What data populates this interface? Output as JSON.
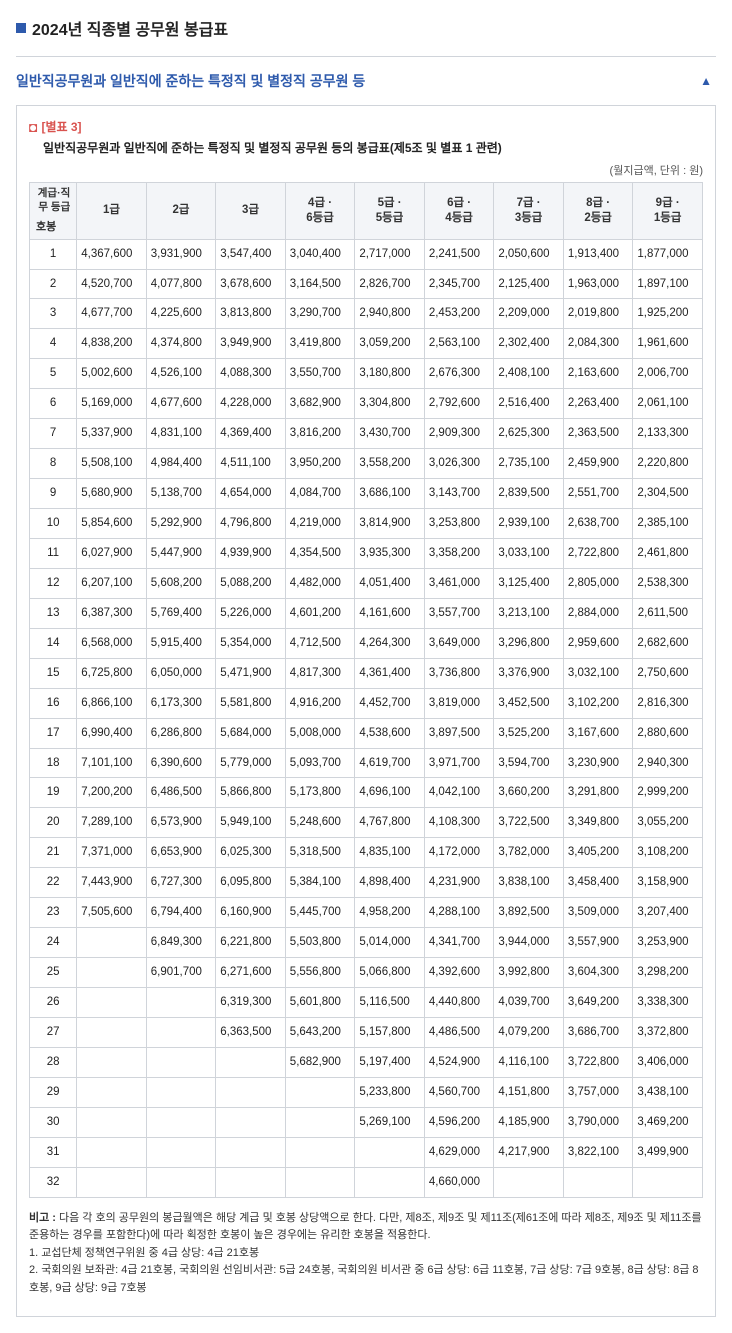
{
  "page_title": "2024년 직종별 공무원 봉급표",
  "section_title": "일반직공무원과 일반직에 준하는 특정직 및 별정직 공무원 등",
  "attachment_label": "[별표 3]",
  "attachment_desc": "일반직공무원과 일반직에 준하는 특정직 및 별정직 공무원 등의 봉급표(제5조 및 별표 1 관련)",
  "unit_label": "(월지급액, 단위 : 원)",
  "corner_header_top": "계급·직무\n등급",
  "corner_header_bottom": "호봉",
  "grade_headers": [
    "1급",
    "2급",
    "3급",
    "4급 ·\n6등급",
    "5급 ·\n5등급",
    "6급 ·\n4등급",
    "7급 ·\n3등급",
    "8급 ·\n2등급",
    "9급 ·\n1등급"
  ],
  "rows": [
    {
      "n": 1,
      "v": [
        "4,367,600",
        "3,931,900",
        "3,547,400",
        "3,040,400",
        "2,717,000",
        "2,241,500",
        "2,050,600",
        "1,913,400",
        "1,877,000"
      ]
    },
    {
      "n": 2,
      "v": [
        "4,520,700",
        "4,077,800",
        "3,678,600",
        "3,164,500",
        "2,826,700",
        "2,345,700",
        "2,125,400",
        "1,963,000",
        "1,897,100"
      ]
    },
    {
      "n": 3,
      "v": [
        "4,677,700",
        "4,225,600",
        "3,813,800",
        "3,290,700",
        "2,940,800",
        "2,453,200",
        "2,209,000",
        "2,019,800",
        "1,925,200"
      ]
    },
    {
      "n": 4,
      "v": [
        "4,838,200",
        "4,374,800",
        "3,949,900",
        "3,419,800",
        "3,059,200",
        "2,563,100",
        "2,302,400",
        "2,084,300",
        "1,961,600"
      ]
    },
    {
      "n": 5,
      "v": [
        "5,002,600",
        "4,526,100",
        "4,088,300",
        "3,550,700",
        "3,180,800",
        "2,676,300",
        "2,408,100",
        "2,163,600",
        "2,006,700"
      ]
    },
    {
      "n": 6,
      "v": [
        "5,169,000",
        "4,677,600",
        "4,228,000",
        "3,682,900",
        "3,304,800",
        "2,792,600",
        "2,516,400",
        "2,263,400",
        "2,061,100"
      ]
    },
    {
      "n": 7,
      "v": [
        "5,337,900",
        "4,831,100",
        "4,369,400",
        "3,816,200",
        "3,430,700",
        "2,909,300",
        "2,625,300",
        "2,363,500",
        "2,133,300"
      ]
    },
    {
      "n": 8,
      "v": [
        "5,508,100",
        "4,984,400",
        "4,511,100",
        "3,950,200",
        "3,558,200",
        "3,026,300",
        "2,735,100",
        "2,459,900",
        "2,220,800"
      ]
    },
    {
      "n": 9,
      "v": [
        "5,680,900",
        "5,138,700",
        "4,654,000",
        "4,084,700",
        "3,686,100",
        "3,143,700",
        "2,839,500",
        "2,551,700",
        "2,304,500"
      ]
    },
    {
      "n": 10,
      "v": [
        "5,854,600",
        "5,292,900",
        "4,796,800",
        "4,219,000",
        "3,814,900",
        "3,253,800",
        "2,939,100",
        "2,638,700",
        "2,385,100"
      ]
    },
    {
      "n": 11,
      "v": [
        "6,027,900",
        "5,447,900",
        "4,939,900",
        "4,354,500",
        "3,935,300",
        "3,358,200",
        "3,033,100",
        "2,722,800",
        "2,461,800"
      ]
    },
    {
      "n": 12,
      "v": [
        "6,207,100",
        "5,608,200",
        "5,088,200",
        "4,482,000",
        "4,051,400",
        "3,461,000",
        "3,125,400",
        "2,805,000",
        "2,538,300"
      ]
    },
    {
      "n": 13,
      "v": [
        "6,387,300",
        "5,769,400",
        "5,226,000",
        "4,601,200",
        "4,161,600",
        "3,557,700",
        "3,213,100",
        "2,884,000",
        "2,611,500"
      ]
    },
    {
      "n": 14,
      "v": [
        "6,568,000",
        "5,915,400",
        "5,354,000",
        "4,712,500",
        "4,264,300",
        "3,649,000",
        "3,296,800",
        "2,959,600",
        "2,682,600"
      ]
    },
    {
      "n": 15,
      "v": [
        "6,725,800",
        "6,050,000",
        "5,471,900",
        "4,817,300",
        "4,361,400",
        "3,736,800",
        "3,376,900",
        "3,032,100",
        "2,750,600"
      ]
    },
    {
      "n": 16,
      "v": [
        "6,866,100",
        "6,173,300",
        "5,581,800",
        "4,916,200",
        "4,452,700",
        "3,819,000",
        "3,452,500",
        "3,102,200",
        "2,816,300"
      ]
    },
    {
      "n": 17,
      "v": [
        "6,990,400",
        "6,286,800",
        "5,684,000",
        "5,008,000",
        "4,538,600",
        "3,897,500",
        "3,525,200",
        "3,167,600",
        "2,880,600"
      ]
    },
    {
      "n": 18,
      "v": [
        "7,101,100",
        "6,390,600",
        "5,779,000",
        "5,093,700",
        "4,619,700",
        "3,971,700",
        "3,594,700",
        "3,230,900",
        "2,940,300"
      ]
    },
    {
      "n": 19,
      "v": [
        "7,200,200",
        "6,486,500",
        "5,866,800",
        "5,173,800",
        "4,696,100",
        "4,042,100",
        "3,660,200",
        "3,291,800",
        "2,999,200"
      ]
    },
    {
      "n": 20,
      "v": [
        "7,289,100",
        "6,573,900",
        "5,949,100",
        "5,248,600",
        "4,767,800",
        "4,108,300",
        "3,722,500",
        "3,349,800",
        "3,055,200"
      ]
    },
    {
      "n": 21,
      "v": [
        "7,371,000",
        "6,653,900",
        "6,025,300",
        "5,318,500",
        "4,835,100",
        "4,172,000",
        "3,782,000",
        "3,405,200",
        "3,108,200"
      ]
    },
    {
      "n": 22,
      "v": [
        "7,443,900",
        "6,727,300",
        "6,095,800",
        "5,384,100",
        "4,898,400",
        "4,231,900",
        "3,838,100",
        "3,458,400",
        "3,158,900"
      ]
    },
    {
      "n": 23,
      "v": [
        "7,505,600",
        "6,794,400",
        "6,160,900",
        "5,445,700",
        "4,958,200",
        "4,288,100",
        "3,892,500",
        "3,509,000",
        "3,207,400"
      ]
    },
    {
      "n": 24,
      "v": [
        "",
        "6,849,300",
        "6,221,800",
        "5,503,800",
        "5,014,000",
        "4,341,700",
        "3,944,000",
        "3,557,900",
        "3,253,900"
      ]
    },
    {
      "n": 25,
      "v": [
        "",
        "6,901,700",
        "6,271,600",
        "5,556,800",
        "5,066,800",
        "4,392,600",
        "3,992,800",
        "3,604,300",
        "3,298,200"
      ]
    },
    {
      "n": 26,
      "v": [
        "",
        "",
        "6,319,300",
        "5,601,800",
        "5,116,500",
        "4,440,800",
        "4,039,700",
        "3,649,200",
        "3,338,300"
      ]
    },
    {
      "n": 27,
      "v": [
        "",
        "",
        "6,363,500",
        "5,643,200",
        "5,157,800",
        "4,486,500",
        "4,079,200",
        "3,686,700",
        "3,372,800"
      ]
    },
    {
      "n": 28,
      "v": [
        "",
        "",
        "",
        "5,682,900",
        "5,197,400",
        "4,524,900",
        "4,116,100",
        "3,722,800",
        "3,406,000"
      ]
    },
    {
      "n": 29,
      "v": [
        "",
        "",
        "",
        "",
        "5,233,800",
        "4,560,700",
        "4,151,800",
        "3,757,000",
        "3,438,100"
      ]
    },
    {
      "n": 30,
      "v": [
        "",
        "",
        "",
        "",
        "5,269,100",
        "4,596,200",
        "4,185,900",
        "3,790,000",
        "3,469,200"
      ]
    },
    {
      "n": 31,
      "v": [
        "",
        "",
        "",
        "",
        "",
        "4,629,000",
        "4,217,900",
        "3,822,100",
        "3,499,900"
      ]
    },
    {
      "n": 32,
      "v": [
        "",
        "",
        "",
        "",
        "",
        "4,660,000",
        "",
        "",
        ""
      ]
    }
  ],
  "notes_label": "비고 : ",
  "notes_intro": "다음 각 호의 공무원의 봉급월액은 해당 계급 및 호봉 상당액으로 한다. 다만, 제8조, 제9조 및 제11조(제61조에 따라 제8조, 제9조 및 제11조를 준용하는 경우를 포함한다)에 따라 획정한 호봉이 높은 경우에는 유리한 호봉을 적용한다.",
  "notes_items": [
    "1.  교섭단체 정책연구위원 중 4급 상당: 4급 21호봉",
    "2.  국회의원 보좌관: 4급 21호봉, 국회의원 선임비서관: 5급 24호봉, 국회의원 비서관 중 6급 상당: 6급 11호봉, 7급 상당: 7급 9호봉, 8급 상당: 8급 8호봉, 9급 상당: 9급 7호봉"
  ]
}
